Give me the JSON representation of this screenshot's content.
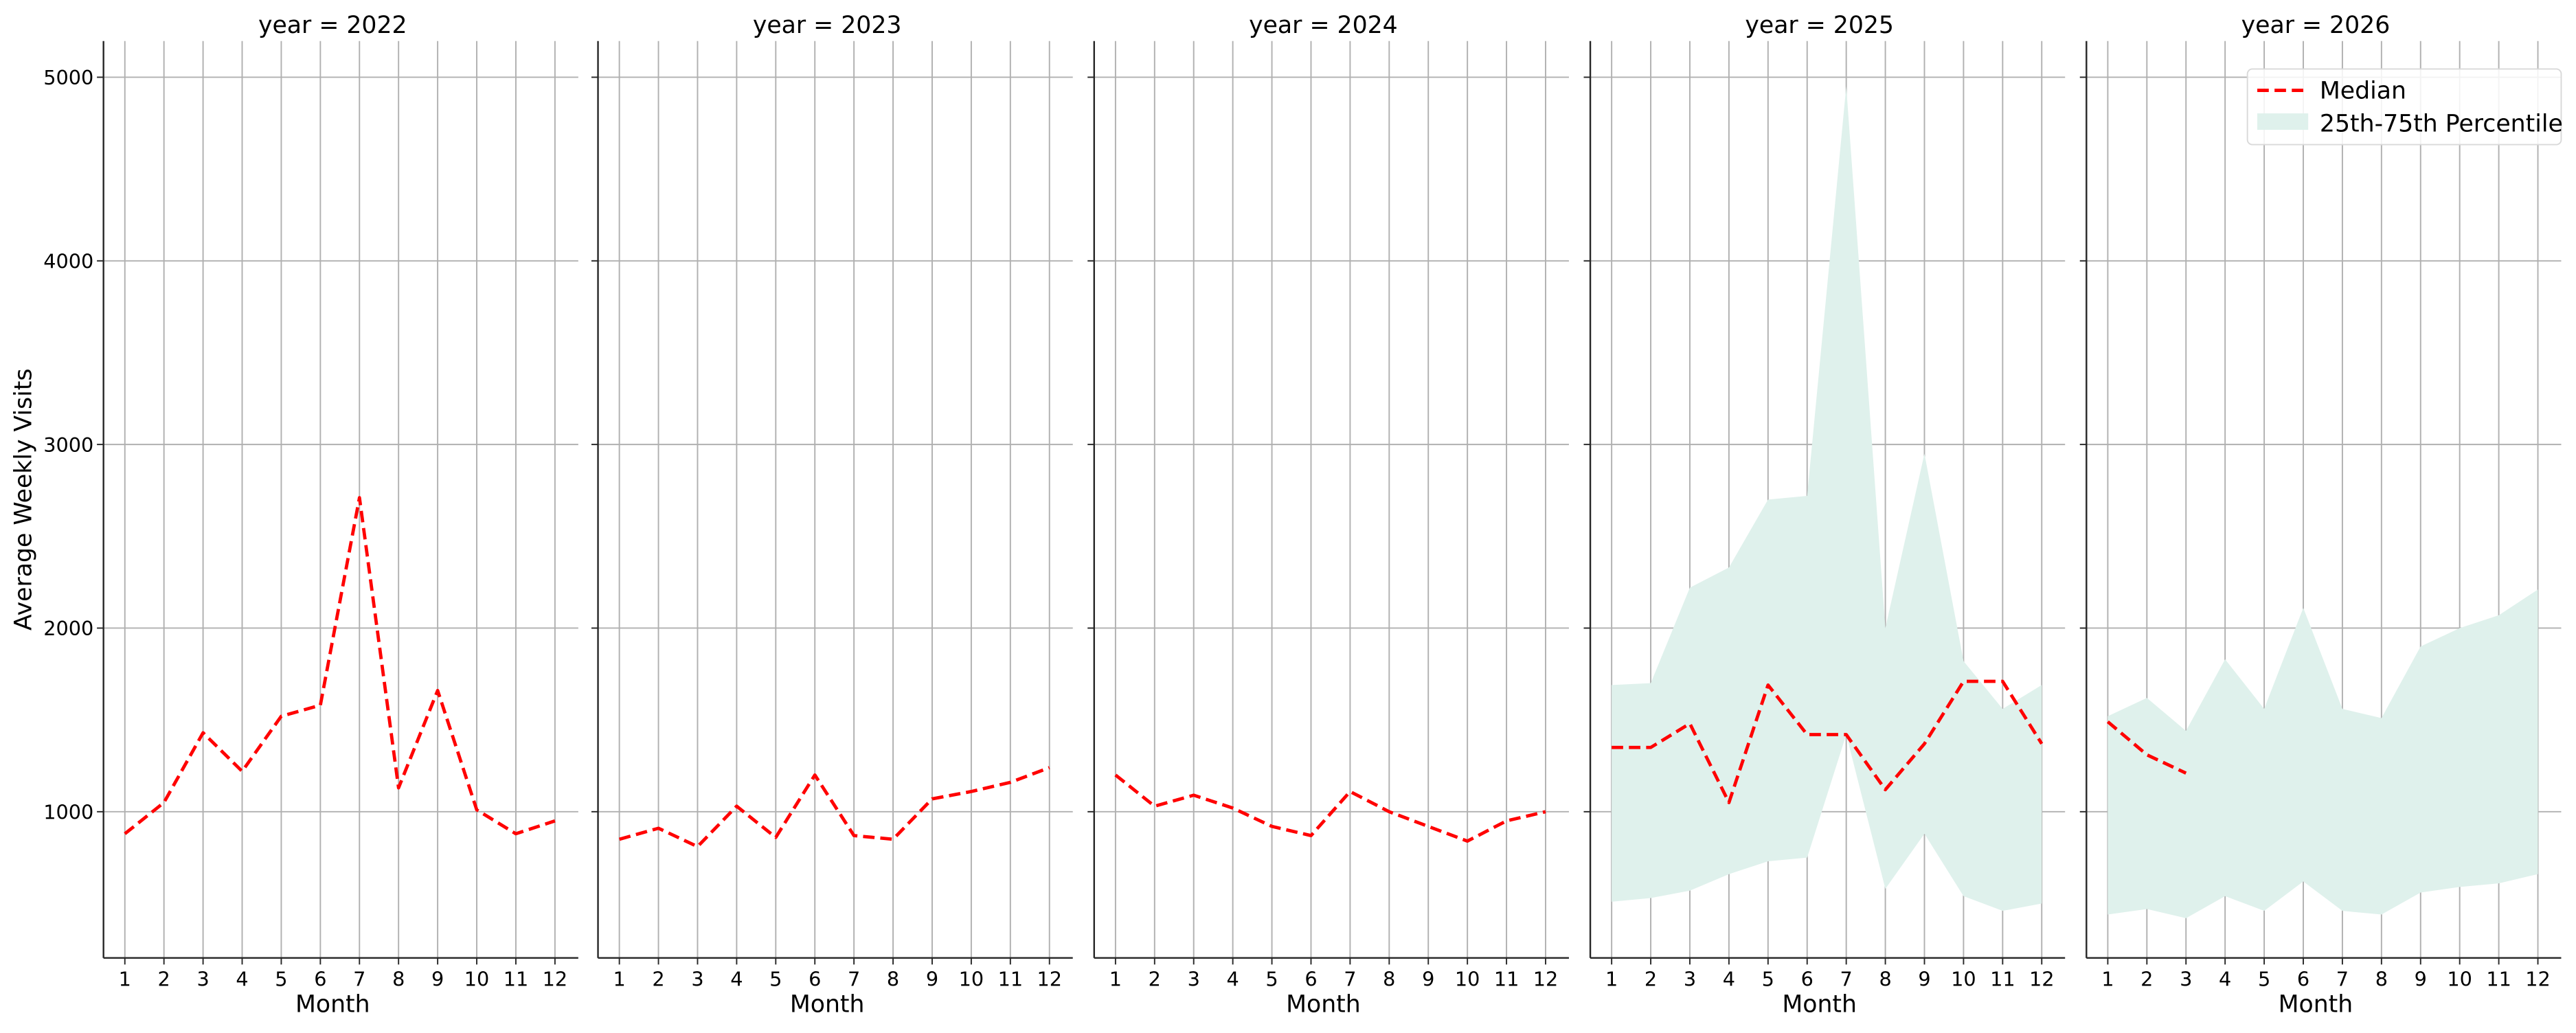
{
  "chart_data": {
    "type": "line",
    "layout": "facet-grid",
    "facet_variable": "year",
    "ylabel": "Average Weekly Visits",
    "xlabel": "Month",
    "ylim": [
      200,
      5200
    ],
    "yticks": [
      1000,
      2000,
      3000,
      4000,
      5000
    ],
    "xticks": [
      1,
      2,
      3,
      4,
      5,
      6,
      7,
      8,
      9,
      10,
      11,
      12
    ],
    "grid": true,
    "colors": {
      "median": "#ff0000",
      "band": "#dff1ec"
    },
    "legend": {
      "position": "upper right (year = 2026 panel)",
      "entries": [
        {
          "label": "Median",
          "style": "dashed-line",
          "color": "#ff0000"
        },
        {
          "label": "25th-75th Percentile",
          "style": "filled-area",
          "color": "#dff1ec"
        }
      ]
    },
    "panels": [
      {
        "title": "year = 2022",
        "median": {
          "x": [
            1,
            2,
            3,
            4,
            5,
            6,
            7,
            8,
            9,
            10,
            11,
            12
          ],
          "y": [
            880,
            1050,
            1430,
            1220,
            1520,
            1580,
            2710,
            1130,
            1660,
            1010,
            880,
            950
          ]
        },
        "p25_p75": null
      },
      {
        "title": "year = 2023",
        "median": {
          "x": [
            1,
            2,
            3,
            4,
            5,
            6,
            7,
            8,
            9,
            10,
            11,
            12
          ],
          "y": [
            850,
            910,
            810,
            1030,
            860,
            1200,
            870,
            850,
            1070,
            1110,
            1160,
            1240
          ]
        },
        "p25_p75": null
      },
      {
        "title": "year = 2024",
        "median": {
          "x": [
            1,
            2,
            3,
            4,
            5,
            6,
            7,
            8,
            9,
            10,
            11,
            12
          ],
          "y": [
            1200,
            1030,
            1090,
            1020,
            920,
            870,
            1110,
            1000,
            920,
            840,
            950,
            1000
          ]
        },
        "p25_p75": null
      },
      {
        "title": "year = 2025",
        "median": {
          "x": [
            1,
            2,
            3,
            4,
            5,
            6,
            7,
            8,
            9,
            10,
            11,
            12
          ],
          "y": [
            1350,
            1350,
            1480,
            1050,
            1690,
            1420,
            1420,
            1120,
            1370,
            1710,
            1710,
            1370
          ]
        },
        "p25_p75": {
          "x": [
            1,
            2,
            3,
            4,
            5,
            6,
            7,
            8,
            9,
            10,
            11,
            12
          ],
          "low": [
            510,
            530,
            570,
            660,
            730,
            750,
            1420,
            580,
            880,
            540,
            460,
            500
          ],
          "high": [
            1690,
            1700,
            2220,
            2330,
            2700,
            2720,
            4950,
            2000,
            2950,
            1820,
            1560,
            1690
          ]
        }
      },
      {
        "title": "year = 2026",
        "median": {
          "x": [
            1,
            2,
            3
          ],
          "y": [
            1490,
            1310,
            1210
          ]
        },
        "p25_p75": {
          "x": [
            1,
            2,
            3,
            4,
            5,
            6,
            7,
            8,
            9,
            10,
            11,
            12
          ],
          "low": [
            440,
            470,
            420,
            540,
            460,
            620,
            460,
            440,
            560,
            590,
            610,
            660
          ],
          "high": [
            1520,
            1620,
            1440,
            1830,
            1560,
            2110,
            1560,
            1510,
            1900,
            2000,
            2070,
            2210
          ]
        }
      }
    ]
  }
}
